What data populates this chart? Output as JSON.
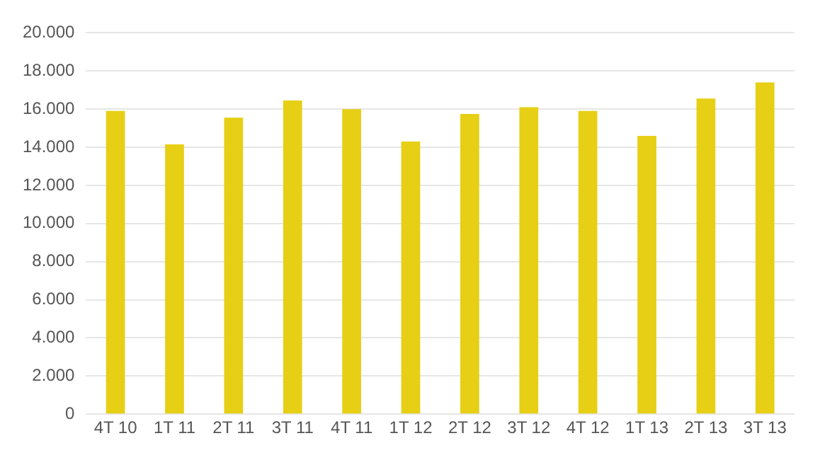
{
  "chart_data": {
    "type": "bar",
    "categories": [
      "4T 10",
      "1T 11",
      "2T 11",
      "3T 11",
      "4T 11",
      "1T 12",
      "2T 12",
      "3T 12",
      "4T 12",
      "1T 13",
      "2T 13",
      "3T 13"
    ],
    "values": [
      15900,
      14150,
      15550,
      16450,
      16000,
      14300,
      15750,
      16100,
      15900,
      14600,
      16550,
      17400
    ],
    "color": "#e6cf14",
    "ylim": [
      0,
      20000
    ],
    "yticks": [
      0,
      {
        "value": 2000,
        "label": "2.000"
      },
      {
        "value": 4000,
        "label": "4.000"
      },
      {
        "value": 6000,
        "label": "6.000"
      },
      {
        "value": 8000,
        "label": "8.000"
      },
      {
        "value": 10000,
        "label": "10.000"
      },
      {
        "value": 12000,
        "label": "12.000"
      },
      {
        "value": 14000,
        "label": "14.000"
      },
      {
        "value": 16000,
        "label": "16.000"
      },
      {
        "value": 18000,
        "label": "18.000"
      },
      {
        "value": 20000,
        "label": "20.000"
      }
    ],
    "grid": "y"
  }
}
